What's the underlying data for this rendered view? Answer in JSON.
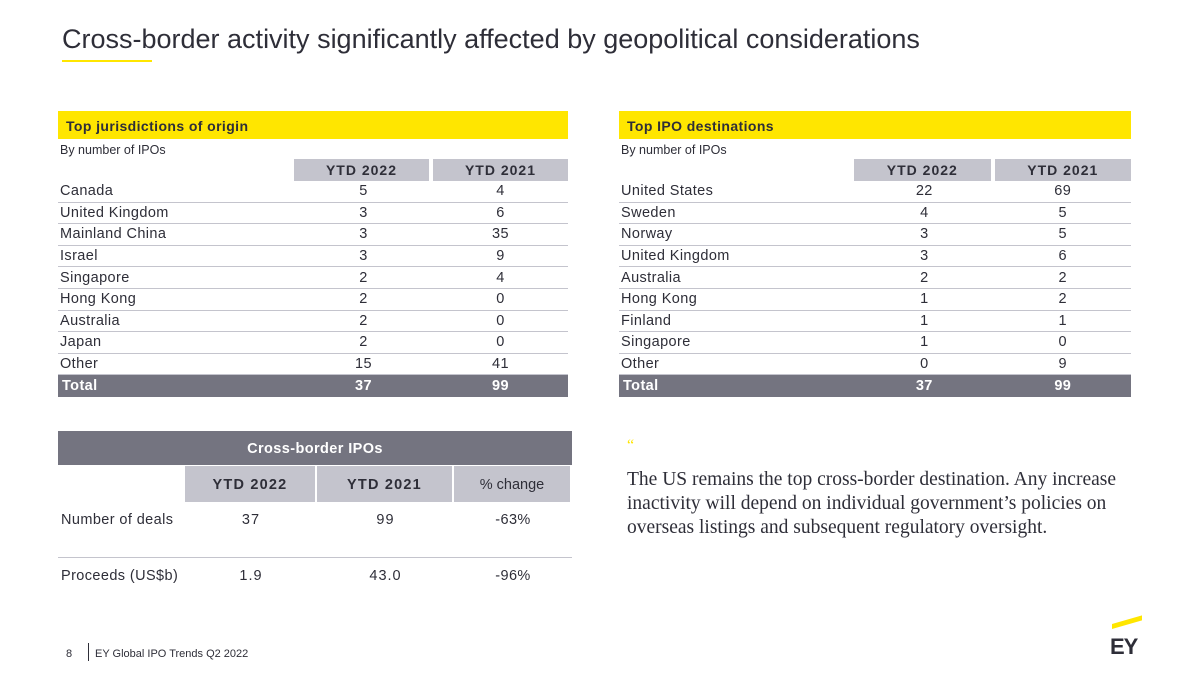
{
  "page": {
    "title": "Cross-border activity significantly affected by geopolitical considerations"
  },
  "origin_table": {
    "title": "Top jurisdictions  of origin",
    "subtitle": "By number of IPOs",
    "col1": "YTD 2022",
    "col2": "YTD 2021",
    "rows": [
      {
        "name": "Canada",
        "v2022": "5",
        "v2021": "4"
      },
      {
        "name": "United Kingdom",
        "v2022": "3",
        "v2021": "6"
      },
      {
        "name": "Mainland China",
        "v2022": "3",
        "v2021": "35"
      },
      {
        "name": "Israel",
        "v2022": "3",
        "v2021": "9"
      },
      {
        "name": "Singapore",
        "v2022": "2",
        "v2021": "4"
      },
      {
        "name": "Hong Kong",
        "v2022": "2",
        "v2021": "0"
      },
      {
        "name": "Australia",
        "v2022": "2",
        "v2021": "0"
      },
      {
        "name": "Japan",
        "v2022": "2",
        "v2021": "0"
      },
      {
        "name": "Other",
        "v2022": "15",
        "v2021": "41"
      }
    ],
    "total": {
      "name": "Total",
      "v2022": "37",
      "v2021": "99"
    }
  },
  "destination_table": {
    "title": "Top IPO destinations",
    "subtitle": "By number of IPOs",
    "col1": "YTD  2022",
    "col2": "YTD 2021",
    "rows": [
      {
        "name": "United States",
        "v2022": "22",
        "v2021": "69"
      },
      {
        "name": "Sweden",
        "v2022": "4",
        "v2021": "5"
      },
      {
        "name": "Norway",
        "v2022": "3",
        "v2021": "5"
      },
      {
        "name": "United Kingdom",
        "v2022": "3",
        "v2021": "6"
      },
      {
        "name": "Australia",
        "v2022": "2",
        "v2021": "2"
      },
      {
        "name": "Hong Kong",
        "v2022": "1",
        "v2021": "2"
      },
      {
        "name": "Finland",
        "v2022": "1",
        "v2021": "1"
      },
      {
        "name": "Singapore",
        "v2022": "1",
        "v2021": "0"
      },
      {
        "name": "Other",
        "v2022": "0",
        "v2021": "9"
      }
    ],
    "total": {
      "name": "Total",
      "v2022": "37",
      "v2021": "99"
    }
  },
  "crossborder_table": {
    "title": "Cross-border  IPOs",
    "col1": "YTD 2022",
    "col2": "YTD 2021",
    "col3": "% change",
    "rows": [
      {
        "name": "Number of deals",
        "v2022": "37",
        "v2021": "99",
        "change": "-63%"
      },
      {
        "name": "Proceeds (US$b)",
        "v2022": "1.9",
        "v2021": "43.0",
        "change": "-96%"
      }
    ]
  },
  "quote": {
    "mark": "“",
    "text": "The US remains the top cross-border destination. Any increase inactivity will depend on individual government’s policies on overseas listings and subsequent regulatory oversight."
  },
  "footer": {
    "page_number": "8",
    "text": "EY Global IPO Trends Q2 2022",
    "logo": "EY"
  },
  "colors": {
    "accent": "#ffe600",
    "dark": "#2e2e38",
    "header_gray": "#747480",
    "light_gray": "#c4c4cd"
  }
}
